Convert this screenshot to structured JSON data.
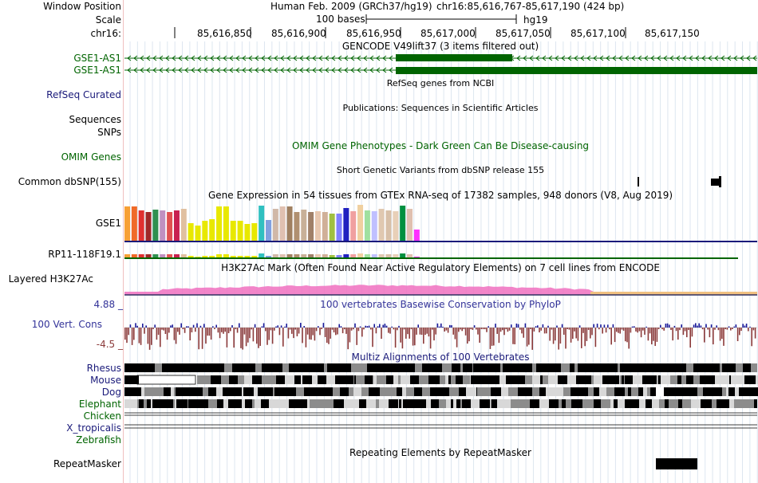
{
  "header": {
    "window_position_label": "Window Position",
    "scale_label": "Scale",
    "chrom_label": "chr16:",
    "assembly": "Human Feb. 2009 (GRCh37/hg19)",
    "position": "chr16:85,616,767-85,617,190 (424 bp)",
    "scale_text": "100 bases",
    "scale_db": "hg19",
    "ruler_ticks": [
      "85,616,850",
      "85,616,900",
      "85,616,950",
      "85,617,000",
      "85,617,050",
      "85,617,100",
      "85,617,150"
    ]
  },
  "tracks": {
    "gencode": {
      "title": "GENCODE V49lift37 (3 items filtered out)",
      "items": [
        "GSE1-AS1",
        "GSE1-AS1"
      ],
      "color": "#006400"
    },
    "refseq": {
      "title": "RefSeq genes from NCBI",
      "label": "RefSeq Curated",
      "color": "#1a1a7a"
    },
    "publications": {
      "title": "Publications: Sequences in Scientific Articles",
      "labels": [
        "Sequences",
        "SNPs"
      ]
    },
    "omim": {
      "title": "OMIM Gene Phenotypes - Dark Green Can Be Disease-causing",
      "label": "OMIM Genes",
      "color": "#006400"
    },
    "dbsnp": {
      "title": "Short Genetic Variants from dbSNP release 155",
      "label": "Common dbSNP(155)"
    },
    "gtex": {
      "title": "Gene Expression in 54 tissues from GTEx RNA-seq of 17382 samples, 948 donors (V8, Aug 2019)",
      "genes": [
        "GSE1",
        "RP11-118F19.1"
      ]
    },
    "h3k27ac": {
      "title": "H3K27Ac Mark (Often Found Near Active Regulatory Elements) on 7 cell lines from ENCODE",
      "label": "Layered H3K27Ac"
    },
    "phylop": {
      "title": "100 vertebrates Basewise Conservation by PhyloP",
      "label": "100 Vert. Cons",
      "max": "4.88 _",
      "min": "-4.5 _",
      "color": "#333399"
    },
    "multiz": {
      "title": "Multiz Alignments of 100 Vertebrates",
      "species": [
        "Rhesus",
        "Mouse",
        "Dog",
        "Elephant",
        "Chicken",
        "X_tropicalis",
        "Zebrafish"
      ]
    },
    "repeatmasker": {
      "title": "Repeating Elements by RepeatMasker",
      "label": "RepeatMasker"
    }
  },
  "colors": {
    "gtex_bars": [
      "#f7a035",
      "#f06a28",
      "#e03030",
      "#a02828",
      "#309050",
      "#c090c0",
      "#e05050",
      "#c82050",
      "#e0c0a0",
      "#e8e800",
      "#e8e800",
      "#e8e800",
      "#e8e800",
      "#e8e800",
      "#e8e800",
      "#e8e800",
      "#e8e800",
      "#e8e800",
      "#e8e800",
      "#30c0c0",
      "#80a0e0",
      "#d0b8a8",
      "#e0c0b0",
      "#a08060",
      "#b09070",
      "#c8b098",
      "#a08068",
      "#e8c8b0",
      "#d0b098",
      "#a0c040",
      "#8080ff",
      "#2020c0",
      "#f0a0a0",
      "#f0d0a0",
      "#a0e0a0",
      "#c0c0ff",
      "#e0c8b0",
      "#d8c0a8",
      "#e8d0b8",
      "#009040",
      "#e0c0b0",
      "#ff30ff"
    ]
  }
}
